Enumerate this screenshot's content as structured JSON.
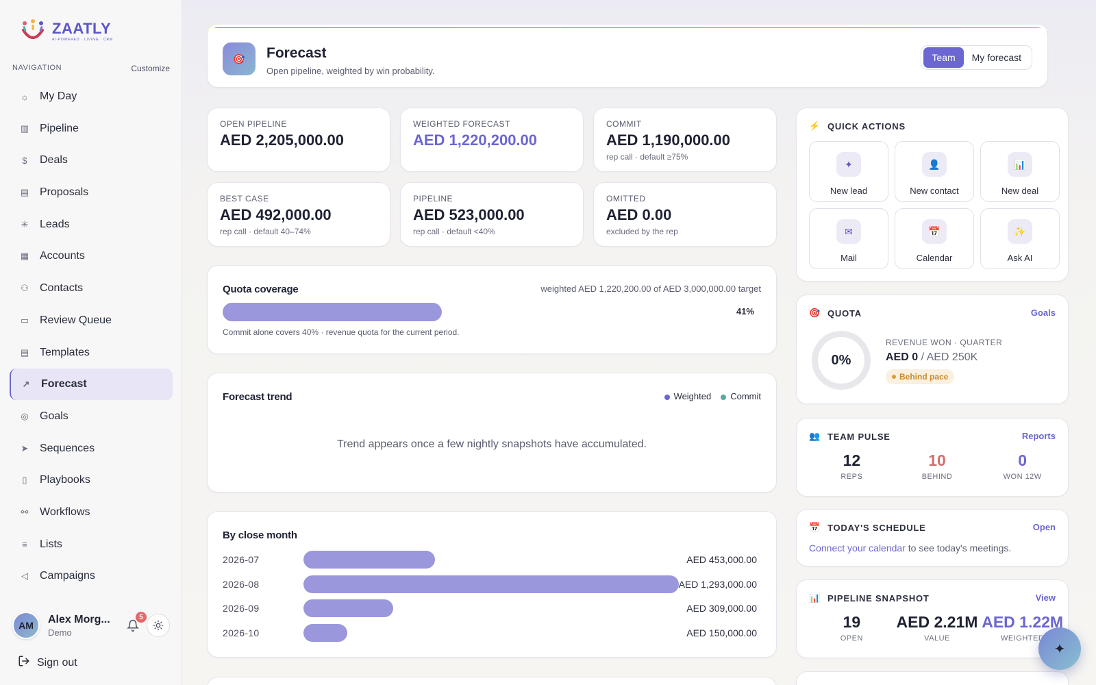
{
  "brand": {
    "name": "ZAATLY",
    "tagline": "AI-POWERED · LIVING · CRM"
  },
  "nav": {
    "caption": "NAVIGATION",
    "customize": "Customize",
    "items": [
      {
        "label": "My Day",
        "icon": "sun-icon"
      },
      {
        "label": "Pipeline",
        "icon": "kanban-icon"
      },
      {
        "label": "Deals",
        "icon": "dollar-icon"
      },
      {
        "label": "Proposals",
        "icon": "document-icon"
      },
      {
        "label": "Leads",
        "icon": "sparkle-icon"
      },
      {
        "label": "Accounts",
        "icon": "building-icon"
      },
      {
        "label": "Contacts",
        "icon": "users-icon"
      },
      {
        "label": "Review Queue",
        "icon": "inbox-icon"
      },
      {
        "label": "Templates",
        "icon": "template-icon"
      },
      {
        "label": "Forecast",
        "icon": "trending-up-icon",
        "active": true
      },
      {
        "label": "Goals",
        "icon": "target-icon"
      },
      {
        "label": "Sequences",
        "icon": "send-icon"
      },
      {
        "label": "Playbooks",
        "icon": "book-icon"
      },
      {
        "label": "Workflows",
        "icon": "workflow-icon"
      },
      {
        "label": "Lists",
        "icon": "list-icon"
      },
      {
        "label": "Campaigns",
        "icon": "megaphone-icon"
      }
    ]
  },
  "user": {
    "initials": "AM",
    "name": "Alex Morg...",
    "role": "Demo",
    "notifications": "5"
  },
  "signout": "Sign out",
  "header": {
    "title": "Forecast",
    "subtitle": "Open pipeline, weighted by win probability.",
    "toggle": [
      "Team",
      "My forecast"
    ],
    "selected": "Team"
  },
  "kpis": [
    {
      "label": "OPEN PIPELINE",
      "value": "AED 2,205,000.00",
      "note": ""
    },
    {
      "label": "WEIGHTED FORECAST",
      "value": "AED 1,220,200.00",
      "note": ""
    },
    {
      "label": "COMMIT",
      "value": "AED 1,190,000.00",
      "note": "rep call · default ≥75%"
    },
    {
      "label": "BEST CASE",
      "value": "AED 492,000.00",
      "note": "rep call · default 40–74%"
    },
    {
      "label": "PIPELINE",
      "value": "AED 523,000.00",
      "note": "rep call · default <40%"
    },
    {
      "label": "OMITTED",
      "value": "AED 0.00",
      "note": "excluded by the rep"
    }
  ],
  "quota_coverage": {
    "title": "Quota coverage",
    "summary": "weighted AED 1,220,200.00 of AED 3,000,000.00 target",
    "percent_label": "41%",
    "fill_fraction": 0.41,
    "note": "Commit alone covers 40% · revenue quota for the current period."
  },
  "forecast_trend": {
    "title": "Forecast trend",
    "legend": [
      {
        "label": "Weighted",
        "color": "#6b66d1"
      },
      {
        "label": "Commit",
        "color": "#5aa9a0"
      }
    ],
    "empty": "Trend appears once a few nightly snapshots have accumulated."
  },
  "by_close_month": {
    "title": "By close month",
    "rows": [
      {
        "month": "2026-07",
        "amount": 453000,
        "label": "AED 453,000.00"
      },
      {
        "month": "2026-08",
        "amount": 1293000,
        "label": "AED 1,293,000.00"
      },
      {
        "month": "2026-09",
        "amount": 309000,
        "label": "AED 309,000.00"
      },
      {
        "month": "2026-10",
        "amount": 150000,
        "label": "AED 150,000.00"
      }
    ]
  },
  "quick_actions": {
    "title": "QUICK ACTIONS",
    "items": [
      {
        "label": "New lead",
        "icon": "sparkle-icon",
        "glyph": "✦"
      },
      {
        "label": "New contact",
        "icon": "person-icon",
        "glyph": "👤"
      },
      {
        "label": "New deal",
        "icon": "bar-chart-icon",
        "glyph": "📊"
      },
      {
        "label": "Mail",
        "icon": "mail-icon",
        "glyph": "✉"
      },
      {
        "label": "Calendar",
        "icon": "calendar-icon",
        "glyph": "📅"
      },
      {
        "label": "Ask AI",
        "icon": "sparkles-icon",
        "glyph": "✨"
      }
    ]
  },
  "quota": {
    "title": "QUOTA",
    "link": "Goals",
    "ring": "0%",
    "caption": "REVENUE WON · QUARTER",
    "won": "AED 0",
    "target": "/ AED 250K",
    "pace": "Behind pace"
  },
  "team_pulse": {
    "title": "TEAM PULSE",
    "link": "Reports",
    "stats": [
      {
        "value": "12",
        "label": "REPS",
        "color": "#1f2233"
      },
      {
        "value": "10",
        "label": "BEHIND",
        "color": "#d07070"
      },
      {
        "value": "0",
        "label": "WON 12W",
        "color": "#6b66d1"
      }
    ]
  },
  "schedule": {
    "title": "TODAY'S SCHEDULE",
    "link": "Open",
    "cta": "Connect your calendar",
    "text": " to see today's meetings."
  },
  "snapshot": {
    "title": "PIPELINE SNAPSHOT",
    "link": "View",
    "stats": [
      {
        "value": "19",
        "label": "OPEN"
      },
      {
        "value": "AED 2.21M",
        "label": "VALUE"
      },
      {
        "value": "AED 1.22M",
        "label": "WEIGHTED"
      }
    ]
  }
}
